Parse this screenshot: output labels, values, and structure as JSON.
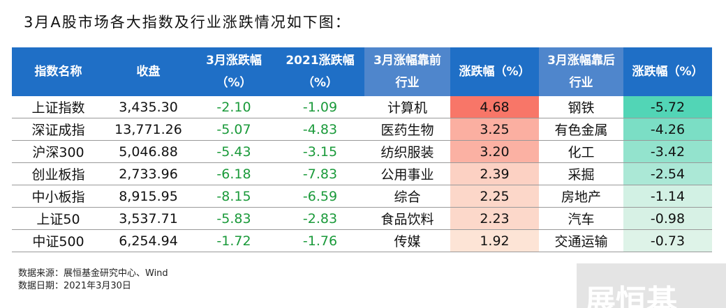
{
  "title": "3月A股市场各大指数及行业涨跌情况如下图：",
  "table": {
    "header": [
      "指数名称",
      "收盘",
      "3月涨跌幅\n（%）",
      "2021涨跌幅\n（%）",
      "3月涨幅靠前\n行业",
      "涨跌幅（%）",
      "3月涨幅靠后\n行业",
      "涨跌幅（%）"
    ],
    "rows": [
      [
        "上证指数",
        "3,435.30",
        "-2.10",
        "-1.09",
        "计算机",
        "4.68",
        "钢铁",
        "-5.72"
      ],
      [
        "深证成指",
        "13,771.26",
        "-5.07",
        "-4.83",
        "医药生物",
        "3.25",
        "有色金属",
        "-4.26"
      ],
      [
        "沪深300",
        "5,046.88",
        "-5.43",
        "-3.15",
        "纺织服装",
        "3.20",
        "化工",
        "-3.42"
      ],
      [
        "创业板指",
        "2,733.96",
        "-6.18",
        "-7.83",
        "公用事业",
        "2.39",
        "采掘",
        "-2.54"
      ],
      [
        "中小板指",
        "8,915.95",
        "-8.15",
        "-6.59",
        "综合",
        "2.25",
        "房地产",
        "-1.14"
      ],
      [
        "上证50",
        "3,537.71",
        "-5.83",
        "-2.83",
        "食品饮料",
        "2.23",
        "汽车",
        "-0.98"
      ],
      [
        "中证500",
        "6,254.94",
        "-1.72",
        "-1.76",
        "传媒",
        "1.92",
        "交通运输",
        "-0.73"
      ]
    ]
  },
  "footer": [
    "数据来源：展恒基金研究中心、Wind",
    "数据日期：2021年3月30日"
  ],
  "watermark": "展恒基"
}
